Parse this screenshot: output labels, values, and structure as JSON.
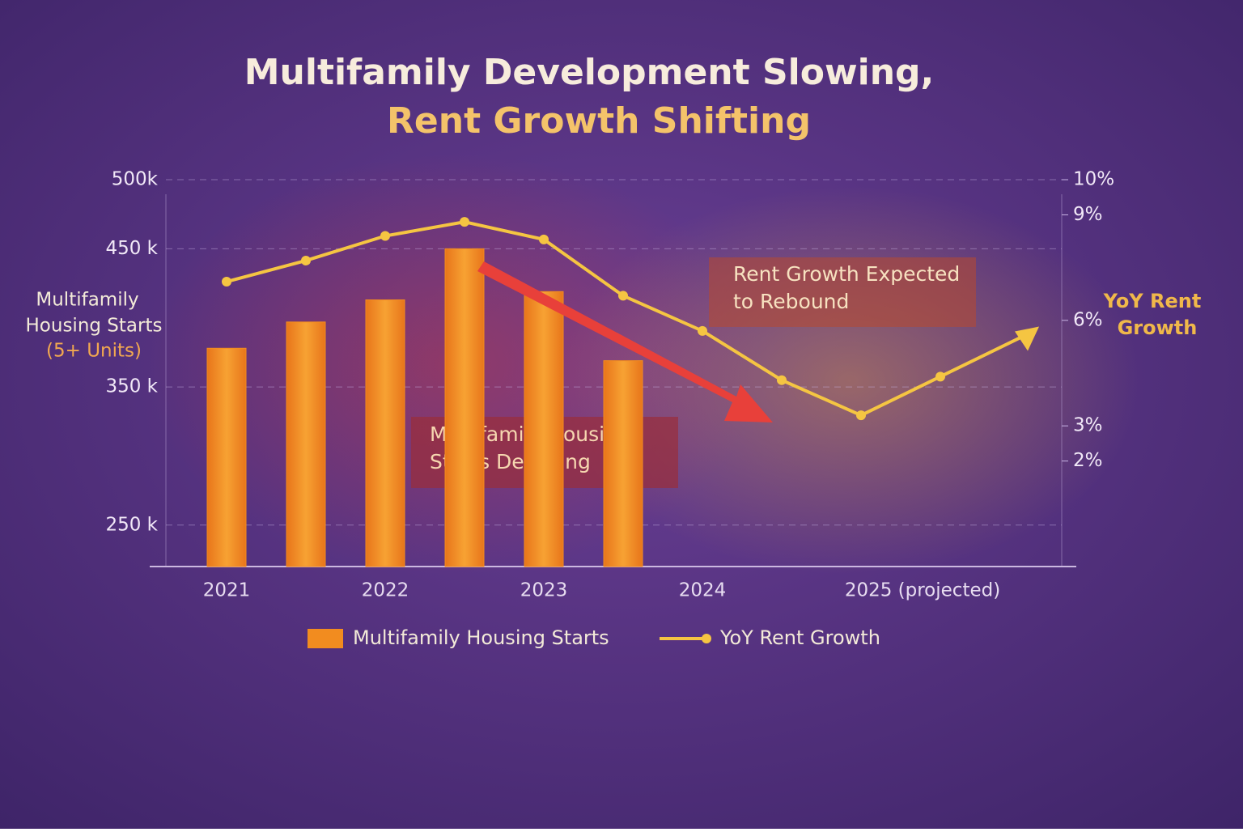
{
  "chart_data": {
    "type": "bar",
    "title": [
      "Multifamily Development Slowing,",
      "Rent Growth Shifting"
    ],
    "y_label": [
      "Multifamily",
      "Housing Starts",
      "(5+ Units)"
    ],
    "y2_label": [
      "YoY Rent",
      "Growth"
    ],
    "categories": [
      "2021",
      null,
      "2022",
      null,
      "2023",
      null,
      "2024",
      null,
      "2025 (projected)",
      null,
      null
    ],
    "series": [
      {
        "name": "Multifamily Housing Starts",
        "type": "bar",
        "color": "#f28c1f",
        "values": [
          378,
          397,
          413,
          450,
          419,
          369,
          null,
          null,
          null,
          null,
          null
        ]
      },
      {
        "name": "YoY Rent Growth",
        "type": "line",
        "axis": "y2",
        "color": "#f5c542",
        "values": [
          7.1,
          7.7,
          8.4,
          8.8,
          8.3,
          6.7,
          5.7,
          4.3,
          3.3,
          4.4,
          5.5
        ]
      }
    ],
    "ylim": [
      220,
      500
    ],
    "yticks": [
      {
        "value": 250,
        "label": "250 k"
      },
      {
        "value": 350,
        "label": "350 k"
      },
      {
        "value": 450,
        "label": "450 k"
      },
      {
        "value": 500,
        "label": "500k"
      }
    ],
    "y2lim": [
      -1,
      10
    ],
    "y2ticks": [
      {
        "value": 2,
        "label": "2%"
      },
      {
        "value": 3,
        "label": "3%"
      },
      {
        "value": 6,
        "label": "6%"
      },
      {
        "value": 9,
        "label": "9%"
      },
      {
        "value": 10,
        "label": "10%"
      }
    ],
    "grid": true,
    "annotations": [
      "Multifamily Housing Starts Declining",
      "Rent Growth Expected to Rebound"
    ]
  }
}
